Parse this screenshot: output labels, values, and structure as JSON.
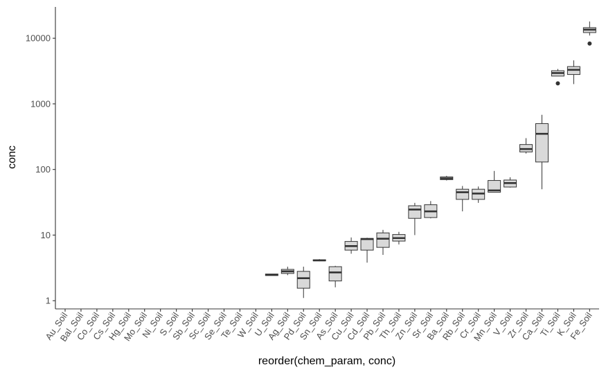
{
  "chart_data": {
    "type": "boxplot",
    "xlabel": "reorder(chem_param, conc)",
    "ylabel": "conc",
    "yscale": "log10",
    "ylim": [
      0.75,
      30000
    ],
    "grid": false,
    "legend": "none",
    "box_fill": "#d9d9d9",
    "line_color": "#333333",
    "y_ticks": [
      {
        "value": 1,
        "label": "1"
      },
      {
        "value": 10,
        "label": "10"
      },
      {
        "value": 100,
        "label": "100"
      },
      {
        "value": 1000,
        "label": "1000"
      },
      {
        "value": 10000,
        "label": "10000"
      }
    ],
    "categories": [
      "Au_Soil",
      "Bal_Soil",
      "Co_Soil",
      "Cs_Soil",
      "Hg_Soil",
      "Mo_Soil",
      "Ni_Soil",
      "S_Soil",
      "Sb_Soil",
      "Sc_Soil",
      "Se_Soil",
      "Te_Soil",
      "W_Soil",
      "U_Soil",
      "Ag_Soil",
      "Pd_Soil",
      "Sn_Soil",
      "As_Soil",
      "Cu_Soil",
      "Cd_Soil",
      "Pb_Soil",
      "Th_Soil",
      "Zn_Soil",
      "Sr_Soil",
      "Ba_Soil",
      "Rb_Soil",
      "Cr_Soil",
      "Mn_Soil",
      "V_Soil",
      "Zr_Soil",
      "Ca_Soil",
      "Ti_Soil",
      "K_Soil",
      "Fe_Soil"
    ],
    "boxes": [
      null,
      null,
      null,
      null,
      null,
      null,
      null,
      null,
      null,
      null,
      null,
      null,
      null,
      {
        "min": 2.42,
        "q1": 2.42,
        "median": 2.48,
        "q3": 2.55,
        "max": 2.55,
        "outliers": []
      },
      {
        "min": 2.45,
        "q1": 2.6,
        "median": 2.8,
        "q3": 3.0,
        "max": 3.3,
        "outliers": []
      },
      {
        "min": 1.1,
        "q1": 1.55,
        "median": 2.2,
        "q3": 2.8,
        "max": 3.3,
        "outliers": []
      },
      {
        "min": 4.0,
        "q1": 4.05,
        "median": 4.12,
        "q3": 4.2,
        "max": 4.3,
        "outliers": []
      },
      {
        "min": 1.6,
        "q1": 2.0,
        "median": 2.7,
        "q3": 3.3,
        "max": 3.4,
        "outliers": []
      },
      {
        "min": 5.2,
        "q1": 5.9,
        "median": 6.8,
        "q3": 8.0,
        "max": 9.2,
        "outliers": []
      },
      {
        "min": 3.8,
        "q1": 5.9,
        "median": 8.7,
        "q3": 8.9,
        "max": 9.1,
        "outliers": []
      },
      {
        "min": 5.0,
        "q1": 6.5,
        "median": 8.8,
        "q3": 10.8,
        "max": 12.0,
        "outliers": []
      },
      {
        "min": 7.2,
        "q1": 8.1,
        "median": 9.0,
        "q3": 10.2,
        "max": 11.2,
        "outliers": []
      },
      {
        "min": 10.0,
        "q1": 18.0,
        "median": 24.5,
        "q3": 28.0,
        "max": 31.0,
        "outliers": []
      },
      {
        "min": 18.0,
        "q1": 18.5,
        "median": 23.0,
        "q3": 29.0,
        "max": 33.0,
        "outliers": []
      },
      {
        "min": 68.0,
        "q1": 70.0,
        "median": 73.0,
        "q3": 77.0,
        "max": 80.0,
        "outliers": []
      },
      {
        "min": 23.0,
        "q1": 35.0,
        "median": 45.0,
        "q3": 50.0,
        "max": 56.0,
        "outliers": []
      },
      {
        "min": 31.0,
        "q1": 35.0,
        "median": 43.0,
        "q3": 50.0,
        "max": 55.0,
        "outliers": []
      },
      {
        "min": 45.0,
        "q1": 45.0,
        "median": 48.0,
        "q3": 68.0,
        "max": 95.0,
        "outliers": []
      },
      {
        "min": 53.0,
        "q1": 54.0,
        "median": 62.0,
        "q3": 69.0,
        "max": 76.0,
        "outliers": []
      },
      {
        "min": 175.0,
        "q1": 185.0,
        "median": 205.0,
        "q3": 240.0,
        "max": 300.0,
        "outliers": []
      },
      {
        "min": 50.0,
        "q1": 130.0,
        "median": 350.0,
        "q3": 500.0,
        "max": 680.0,
        "outliers": []
      },
      {
        "min": 2650.0,
        "q1": 2650.0,
        "median": 2950.0,
        "q3": 3200.0,
        "max": 3400.0,
        "outliers": [
          2050.0
        ]
      },
      {
        "min": 2000.0,
        "q1": 2800.0,
        "median": 3300.0,
        "q3": 3700.0,
        "max": 4600.0,
        "outliers": []
      },
      {
        "min": 11000.0,
        "q1": 12200.0,
        "median": 13500.0,
        "q3": 14500.0,
        "max": 18000.0,
        "outliers": [
          8300.0
        ]
      }
    ]
  }
}
